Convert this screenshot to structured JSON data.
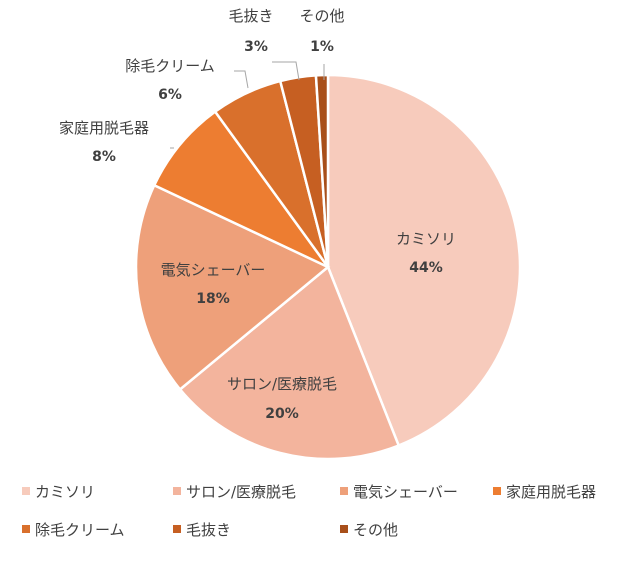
{
  "chart_data": {
    "type": "pie",
    "title": "",
    "categories": [
      "カミソリ",
      "サロン/医療脱毛",
      "電気シェーバー",
      "家庭用脱毛器",
      "除毛クリーム",
      "毛抜き",
      "その他"
    ],
    "values": [
      44,
      20,
      18,
      8,
      6,
      3,
      1
    ],
    "value_labels": [
      "44%",
      "20%",
      "18%",
      "8%",
      "6%",
      "3%",
      "1%"
    ],
    "colors": [
      "#f7cbbc",
      "#f3b49d",
      "#eea07a",
      "#ed7d31",
      "#d9702c",
      "#c65f22",
      "#a84f1a"
    ],
    "start_angle_deg": 0,
    "direction": "clockwise",
    "legend_position": "bottom"
  }
}
